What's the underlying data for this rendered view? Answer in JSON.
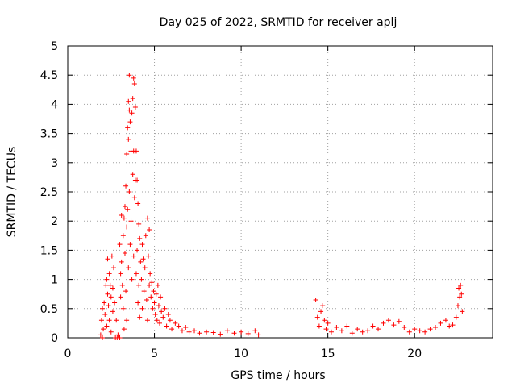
{
  "chart_data": {
    "type": "scatter",
    "title": "Day 025 of 2022, SRMTID for receiver aplj",
    "xlabel": "GPS time / hours",
    "ylabel": "SRMTID / TECUs",
    "xlim": [
      0,
      24.5
    ],
    "ylim": [
      0,
      5
    ],
    "xticks": [
      0,
      5,
      10,
      15,
      20
    ],
    "xtick_labels": [
      "0",
      "5",
      "10",
      "15",
      "20"
    ],
    "yticks": [
      0,
      0.5,
      1,
      1.5,
      2,
      2.5,
      3,
      3.5,
      4,
      4.5,
      5
    ],
    "ytick_labels": [
      "0",
      "0.5",
      "1",
      "1.5",
      "2",
      "2.5",
      "3",
      "3.5",
      "4",
      "4.5",
      "5"
    ],
    "grid": true,
    "marker": "+",
    "color": "#ff0000",
    "series": [
      {
        "name": "SRMTID",
        "points": [
          [
            1.9,
            0.05
          ],
          [
            1.95,
            0.3
          ],
          [
            2.0,
            0.5
          ],
          [
            2.0,
            0.0
          ],
          [
            2.05,
            0.15
          ],
          [
            2.1,
            0.6
          ],
          [
            2.15,
            0.4
          ],
          [
            2.2,
            0.9
          ],
          [
            2.25,
            1.0
          ],
          [
            2.25,
            0.2
          ],
          [
            2.3,
            0.75
          ],
          [
            2.3,
            1.35
          ],
          [
            2.35,
            0.55
          ],
          [
            2.4,
            0.3
          ],
          [
            2.4,
            1.1
          ],
          [
            2.45,
            0.9
          ],
          [
            2.5,
            0.7
          ],
          [
            2.5,
            0.1
          ],
          [
            2.55,
            1.4
          ],
          [
            2.6,
            0.45
          ],
          [
            2.6,
            0.85
          ],
          [
            2.65,
            1.2
          ],
          [
            2.7,
            0.6
          ],
          [
            2.75,
            0.0
          ],
          [
            2.8,
            0.3
          ],
          [
            2.85,
            0.0
          ],
          [
            2.9,
            0.05
          ],
          [
            3.0,
            0.0
          ],
          [
            3.0,
            1.6
          ],
          [
            3.05,
            1.1
          ],
          [
            3.05,
            0.7
          ],
          [
            3.1,
            2.1
          ],
          [
            3.1,
            1.3
          ],
          [
            3.15,
            0.9
          ],
          [
            3.2,
            1.75
          ],
          [
            3.2,
            0.5
          ],
          [
            3.25,
            2.05
          ],
          [
            3.25,
            0.15
          ],
          [
            3.3,
            2.25
          ],
          [
            3.3,
            1.45
          ],
          [
            3.35,
            2.6
          ],
          [
            3.35,
            0.8
          ],
          [
            3.4,
            3.15
          ],
          [
            3.4,
            1.9
          ],
          [
            3.4,
            0.3
          ],
          [
            3.45,
            3.6
          ],
          [
            3.45,
            2.2
          ],
          [
            3.5,
            4.05
          ],
          [
            3.5,
            3.4
          ],
          [
            3.5,
            1.2
          ],
          [
            3.55,
            4.5
          ],
          [
            3.55,
            3.9
          ],
          [
            3.55,
            2.5
          ],
          [
            3.6,
            3.7
          ],
          [
            3.6,
            1.6
          ],
          [
            3.65,
            3.2
          ],
          [
            3.65,
            2.0
          ],
          [
            3.7,
            3.85
          ],
          [
            3.7,
            1.0
          ],
          [
            3.75,
            4.1
          ],
          [
            3.75,
            2.8
          ],
          [
            3.8,
            4.45
          ],
          [
            3.8,
            3.2
          ],
          [
            3.8,
            1.4
          ],
          [
            3.85,
            4.35
          ],
          [
            3.85,
            2.4
          ],
          [
            3.9,
            3.95
          ],
          [
            3.9,
            2.7
          ],
          [
            3.95,
            3.2
          ],
          [
            3.95,
            1.1
          ],
          [
            4.0,
            2.7
          ],
          [
            4.0,
            1.5
          ],
          [
            4.05,
            2.3
          ],
          [
            4.05,
            0.6
          ],
          [
            4.1,
            1.95
          ],
          [
            4.1,
            0.9
          ],
          [
            4.15,
            1.7
          ],
          [
            4.15,
            0.35
          ],
          [
            4.2,
            1.3
          ],
          [
            4.25,
            1.0
          ],
          [
            4.3,
            1.6
          ],
          [
            4.3,
            0.5
          ],
          [
            4.35,
            1.35
          ],
          [
            4.4,
            0.8
          ],
          [
            4.45,
            1.2
          ],
          [
            4.5,
            1.75
          ],
          [
            4.55,
            0.65
          ],
          [
            4.6,
            2.05
          ],
          [
            4.6,
            0.3
          ],
          [
            4.65,
            1.4
          ],
          [
            4.7,
            1.85
          ],
          [
            4.7,
            0.9
          ],
          [
            4.75,
            1.1
          ],
          [
            4.8,
            0.7
          ],
          [
            4.85,
            0.95
          ],
          [
            4.9,
            0.5
          ],
          [
            4.95,
            0.8
          ],
          [
            5.0,
            0.6
          ],
          [
            5.05,
            0.4
          ],
          [
            5.1,
            0.75
          ],
          [
            5.15,
            0.3
          ],
          [
            5.2,
            0.9
          ],
          [
            5.25,
            0.55
          ],
          [
            5.3,
            0.25
          ],
          [
            5.35,
            0.7
          ],
          [
            5.4,
            0.45
          ],
          [
            5.5,
            0.35
          ],
          [
            5.6,
            0.5
          ],
          [
            5.7,
            0.2
          ],
          [
            5.8,
            0.4
          ],
          [
            5.9,
            0.3
          ],
          [
            6.0,
            0.15
          ],
          [
            6.2,
            0.25
          ],
          [
            6.4,
            0.2
          ],
          [
            6.6,
            0.12
          ],
          [
            6.8,
            0.18
          ],
          [
            7.0,
            0.1
          ],
          [
            7.3,
            0.12
          ],
          [
            7.6,
            0.08
          ],
          [
            8.0,
            0.1
          ],
          [
            8.4,
            0.09
          ],
          [
            8.8,
            0.06
          ],
          [
            9.2,
            0.12
          ],
          [
            9.6,
            0.08
          ],
          [
            10.0,
            0.1
          ],
          [
            10.4,
            0.07
          ],
          [
            10.8,
            0.12
          ],
          [
            11.0,
            0.05
          ],
          [
            14.3,
            0.65
          ],
          [
            14.4,
            0.35
          ],
          [
            14.5,
            0.2
          ],
          [
            14.6,
            0.45
          ],
          [
            14.7,
            0.55
          ],
          [
            14.8,
            0.3
          ],
          [
            14.9,
            0.15
          ],
          [
            15.0,
            0.25
          ],
          [
            15.2,
            0.1
          ],
          [
            15.5,
            0.18
          ],
          [
            15.8,
            0.12
          ],
          [
            16.1,
            0.2
          ],
          [
            16.4,
            0.08
          ],
          [
            16.7,
            0.15
          ],
          [
            17.0,
            0.1
          ],
          [
            17.3,
            0.12
          ],
          [
            17.6,
            0.2
          ],
          [
            17.9,
            0.15
          ],
          [
            18.2,
            0.25
          ],
          [
            18.5,
            0.3
          ],
          [
            18.8,
            0.22
          ],
          [
            19.1,
            0.28
          ],
          [
            19.4,
            0.18
          ],
          [
            19.7,
            0.1
          ],
          [
            20.0,
            0.15
          ],
          [
            20.3,
            0.12
          ],
          [
            20.6,
            0.1
          ],
          [
            20.9,
            0.15
          ],
          [
            21.2,
            0.18
          ],
          [
            21.5,
            0.25
          ],
          [
            21.8,
            0.3
          ],
          [
            22.0,
            0.2
          ],
          [
            22.2,
            0.22
          ],
          [
            22.4,
            0.35
          ],
          [
            22.5,
            0.55
          ],
          [
            22.55,
            0.85
          ],
          [
            22.6,
            0.7
          ],
          [
            22.65,
            0.9
          ],
          [
            22.7,
            0.75
          ],
          [
            22.75,
            0.45
          ]
        ]
      }
    ]
  }
}
